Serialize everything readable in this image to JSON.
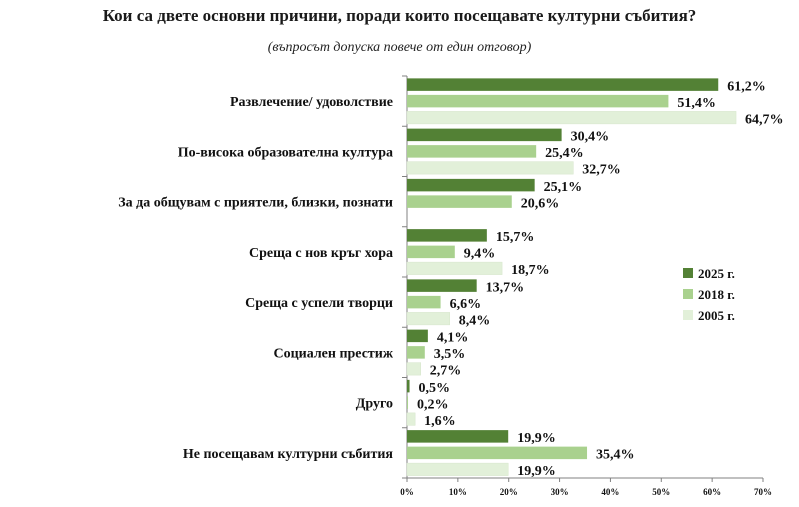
{
  "title": "Кои са двете основни причини, поради които посещавате културни събития?",
  "subtitle": "(въпросът допуска повече от един отговор)",
  "colors": {
    "s2025": "#538135",
    "s2018": "#a9d18e",
    "s2005": "#e2f0d9",
    "axis": "#808080"
  },
  "chart_data": {
    "type": "bar",
    "orientation": "horizontal",
    "categories": [
      "Развлечение/ удоволствие",
      "По-висока образователна култура",
      "За да общувам с приятели, близки, познати",
      "Среща с нов кръг хора",
      "Среща с успели творци",
      "Социален престиж",
      "Друго",
      "Не посещавам културни събития"
    ],
    "series": [
      {
        "name": "2025 г.",
        "values": [
          61.2,
          30.4,
          25.1,
          15.7,
          13.7,
          4.1,
          0.5,
          19.9
        ],
        "labels": [
          "61,2%",
          "30,4%",
          "25,1%",
          "15,7%",
          "13,7%",
          "4,1%",
          "0,5%",
          "19,9%"
        ]
      },
      {
        "name": "2018 г.",
        "values": [
          51.4,
          25.4,
          20.6,
          9.4,
          6.6,
          3.5,
          0.2,
          35.4
        ],
        "labels": [
          "51,4%",
          "25,4%",
          "20,6%",
          "9,4%",
          "6,6%",
          "3,5%",
          "0,2%",
          "35,4%"
        ]
      },
      {
        "name": "2005 г.",
        "values": [
          64.7,
          32.7,
          null,
          18.7,
          8.4,
          2.7,
          1.6,
          19.9
        ],
        "labels": [
          "64,7%",
          "32,7%",
          "",
          "18,7%",
          "8,4%",
          "2,7%",
          "1,6%",
          "19,9%"
        ]
      }
    ],
    "xlim": [
      0,
      70
    ],
    "xticks": [
      "0%",
      "10%",
      "20%",
      "30%",
      "40%",
      "50%",
      "60%",
      "70%"
    ],
    "legend_position": "right",
    "grid": false
  }
}
